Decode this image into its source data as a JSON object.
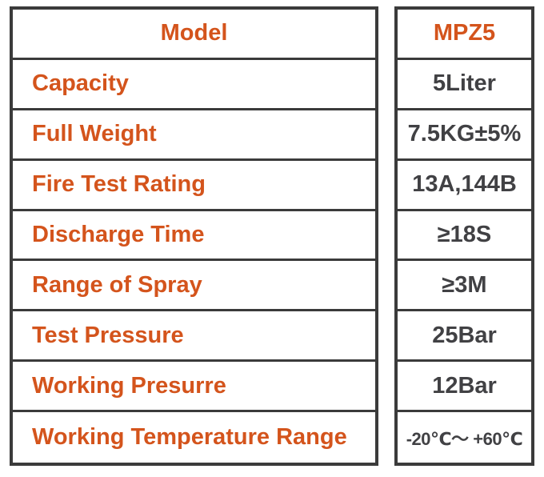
{
  "chart_data": {
    "type": "table",
    "columns": [
      "Model",
      "MPZ5"
    ],
    "rows": [
      [
        "Model",
        "MPZ5"
      ],
      [
        "Capacity",
        "5Liter"
      ],
      [
        "Full Weight",
        "7.5KG±5%"
      ],
      [
        "Fire Test Rating",
        "13A,144B"
      ],
      [
        "Discharge Time",
        "≥18S"
      ],
      [
        "Range of Spray",
        "≥3M"
      ],
      [
        "Test Pressure",
        "25Bar"
      ],
      [
        "Working Presurre",
        "12Bar"
      ],
      [
        "Working Temperature Range",
        "-20℃～ +60℃"
      ]
    ],
    "layout_hints": {
      "header_row_index": 0,
      "label_column_align": "left",
      "header_label_align": "center",
      "value_column_align": "center",
      "grid": "on",
      "double_vertical_divider": true
    }
  },
  "styles": {
    "accent_color": "#d4541c",
    "text_color": "#414144",
    "border_color": "#3b3b3b",
    "background_color": "#ffffff"
  }
}
